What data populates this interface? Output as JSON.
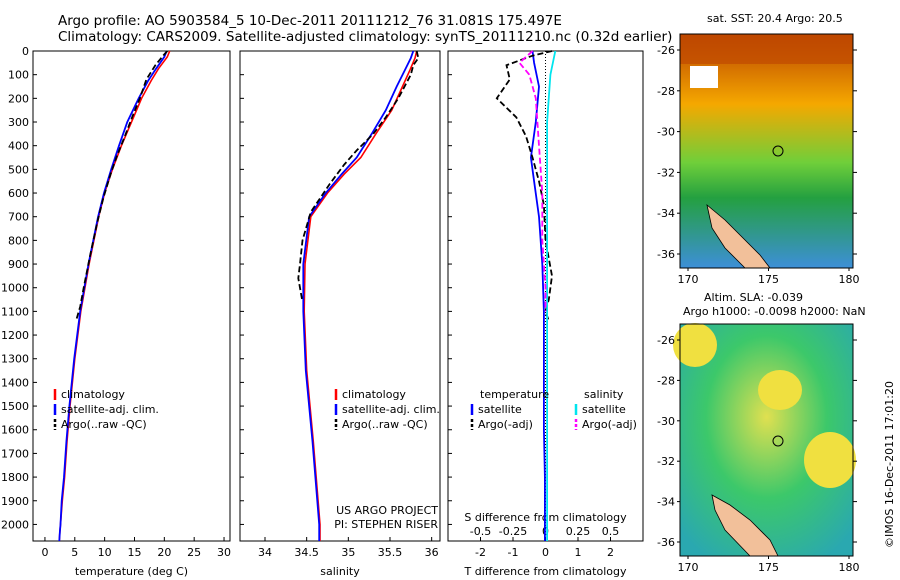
{
  "titles": {
    "line1": "Argo profile: AO 5903584_5 10-Dec-2011 20111212_76 31.081S 175.497E",
    "line2": "Climatology: CARS2009. Satellite-adjusted climatology: synTS_20111210.nc (0.32d earlier)"
  },
  "colors": {
    "climatology": "#ff0000",
    "satellite": "#0000ff",
    "argo": "#000000",
    "satellite_salinity": "#00e5ee",
    "argo_salinity": "#ff00ff"
  },
  "chart_data": [
    {
      "type": "line",
      "panel": "temperature",
      "xlabel": "temperature (deg C)",
      "xlim": [
        -2,
        31
      ],
      "ylim": [
        2070,
        0
      ],
      "xticks": [
        0,
        5,
        10,
        15,
        20,
        25,
        30
      ],
      "yticks": [
        0,
        100,
        200,
        300,
        400,
        500,
        600,
        700,
        800,
        900,
        1000,
        1100,
        1200,
        1300,
        1400,
        1500,
        1600,
        1700,
        1800,
        1900,
        2000
      ],
      "legend": [
        "climatology",
        "satellite-adj. clim.",
        "Argo(..raw -QC)"
      ],
      "series": [
        {
          "name": "climatology",
          "x": [
            20.9,
            20.5,
            19.0,
            17.8,
            16.2,
            14.5,
            12.8,
            11.3,
            10.0,
            9.0,
            7.4,
            6.0,
            5.0,
            4.2,
            3.7,
            3.3,
            2.9,
            2.6,
            2.5,
            2.4
          ],
          "y": [
            0,
            25,
            75,
            125,
            200,
            300,
            400,
            500,
            600,
            700,
            900,
            1100,
            1300,
            1500,
            1650,
            1800,
            1900,
            2000,
            2030,
            2070
          ]
        },
        {
          "name": "satellite-adj. clim.",
          "x": [
            20.4,
            20.0,
            18.6,
            17.3,
            15.7,
            13.8,
            12.4,
            11.1,
            9.9,
            8.9,
            7.3,
            5.9,
            4.9,
            4.1,
            3.6,
            3.2,
            2.8,
            2.6,
            2.5,
            2.4
          ],
          "y": [
            0,
            25,
            75,
            125,
            200,
            300,
            400,
            500,
            600,
            700,
            900,
            1100,
            1300,
            1500,
            1650,
            1800,
            1900,
            2000,
            2030,
            2070
          ]
        },
        {
          "name": "Argo(..raw -QC)",
          "x": [
            20.5,
            19.8,
            18.5,
            17.0,
            15.9,
            14.6,
            13.4,
            12.1,
            11.0,
            9.8,
            8.8,
            7.6,
            6.5,
            5.9,
            5.2
          ],
          "y": [
            0,
            20,
            60,
            120,
            200,
            280,
            360,
            440,
            520,
            620,
            720,
            860,
            1000,
            1080,
            1140
          ]
        }
      ]
    },
    {
      "type": "line",
      "panel": "salinity",
      "xlabel": "salinity",
      "xlim": [
        33.7,
        36.1
      ],
      "ylim": [
        2070,
        0
      ],
      "xticks": [
        34,
        34.5,
        35,
        35.5,
        36
      ],
      "legend": [
        "climatology",
        "satellite-adj. clim.",
        "Argo(..raw -QC)"
      ],
      "annotation": [
        "US ARGO PROJECT",
        "PI: STEPHEN RISER"
      ],
      "series": [
        {
          "name": "climatology",
          "x": [
            35.82,
            35.8,
            35.74,
            35.65,
            35.52,
            35.33,
            35.15,
            34.95,
            34.75,
            34.55,
            34.48,
            34.47,
            34.5,
            34.58,
            34.66,
            34.66
          ],
          "y": [
            0,
            30,
            80,
            150,
            250,
            350,
            450,
            520,
            600,
            700,
            900,
            1100,
            1350,
            1650,
            2000,
            2070
          ]
        },
        {
          "name": "satellite-adj. clim.",
          "x": [
            35.78,
            35.75,
            35.68,
            35.58,
            35.45,
            35.28,
            35.1,
            34.92,
            34.73,
            34.53,
            34.46,
            34.46,
            34.49,
            34.57,
            34.65,
            34.65
          ],
          "y": [
            0,
            30,
            80,
            150,
            250,
            350,
            450,
            520,
            600,
            700,
            900,
            1100,
            1350,
            1650,
            2000,
            2070
          ]
        },
        {
          "name": "Argo(..raw -QC)",
          "x": [
            35.82,
            35.84,
            35.78,
            35.75,
            35.6,
            35.45,
            35.3,
            35.1,
            34.95,
            34.78,
            34.55,
            34.45,
            34.42,
            34.4,
            34.43,
            34.45
          ],
          "y": [
            0,
            30,
            60,
            100,
            200,
            280,
            350,
            420,
            480,
            560,
            680,
            800,
            900,
            960,
            1020,
            1060
          ]
        }
      ]
    },
    {
      "type": "line",
      "panel": "difference",
      "xlabel": "T difference from climatology",
      "xlabel_top": "S difference from climatology",
      "xlim": [
        -3,
        3
      ],
      "ylim": [
        2070,
        0
      ],
      "xticks": [
        -2,
        -1,
        0,
        1,
        2
      ],
      "xticks_s": [
        "-0.5",
        "-0.25",
        "0",
        "0.25",
        "0.5"
      ],
      "legend": [
        "temperature",
        "satellite",
        "Argo(-adj)",
        "salinity",
        "satellite",
        "Argo(-adj)"
      ],
      "series": [
        {
          "name": "temperature satellite",
          "x": [
            -0.4,
            -0.35,
            -0.2,
            -0.3,
            -0.45,
            -0.35,
            -0.2,
            -0.1,
            -0.05,
            -0.05,
            -0.05,
            -0.02,
            -0.02
          ],
          "y": [
            0,
            50,
            150,
            300,
            450,
            550,
            700,
            900,
            1100,
            1300,
            1600,
            1800,
            2070
          ]
        },
        {
          "name": "temperature Argo(-adj)",
          "x": [
            0.2,
            -0.4,
            -1.2,
            -1.1,
            -1.5,
            -0.9,
            -0.6,
            -0.4,
            -0.2,
            -0.05,
            0.0,
            0.2,
            0.1,
            0.0,
            0.1
          ],
          "y": [
            0,
            20,
            60,
            120,
            200,
            280,
            360,
            450,
            550,
            650,
            800,
            950,
            1050,
            1100,
            1140
          ]
        },
        {
          "name": "salinity satellite",
          "x": [
            0.3,
            0.15,
            0.05,
            0.05,
            0.05,
            0.05,
            0.05,
            0.05
          ],
          "y": [
            0,
            100,
            300,
            600,
            1000,
            1400,
            1800,
            2070
          ]
        },
        {
          "name": "salinity Argo(-adj)",
          "x": [
            -0.4,
            -0.8,
            -0.5,
            -0.3,
            -0.2,
            -0.1,
            -0.1,
            0.0,
            0.0
          ],
          "y": [
            0,
            50,
            100,
            200,
            400,
            600,
            800,
            1000,
            1100
          ]
        }
      ]
    }
  ],
  "maps": {
    "sst": {
      "title": "sat. SST: 20.4  Argo: 20.5",
      "yticks": [
        "-26",
        "-28",
        "-30",
        "-32",
        "-34",
        "-36"
      ],
      "xticks": [
        "170",
        "175",
        "180"
      ]
    },
    "sla": {
      "title1": "Altim. SLA: -0.039",
      "title2": "Argo h1000: -0.0098 h2000: NaN",
      "yticks": [
        "-26",
        "-28",
        "-30",
        "-32",
        "-34",
        "-36"
      ],
      "xticks": [
        "170",
        "175",
        "180"
      ]
    },
    "credit": "©IMOS 16-Dec-2011 17:01:20"
  }
}
